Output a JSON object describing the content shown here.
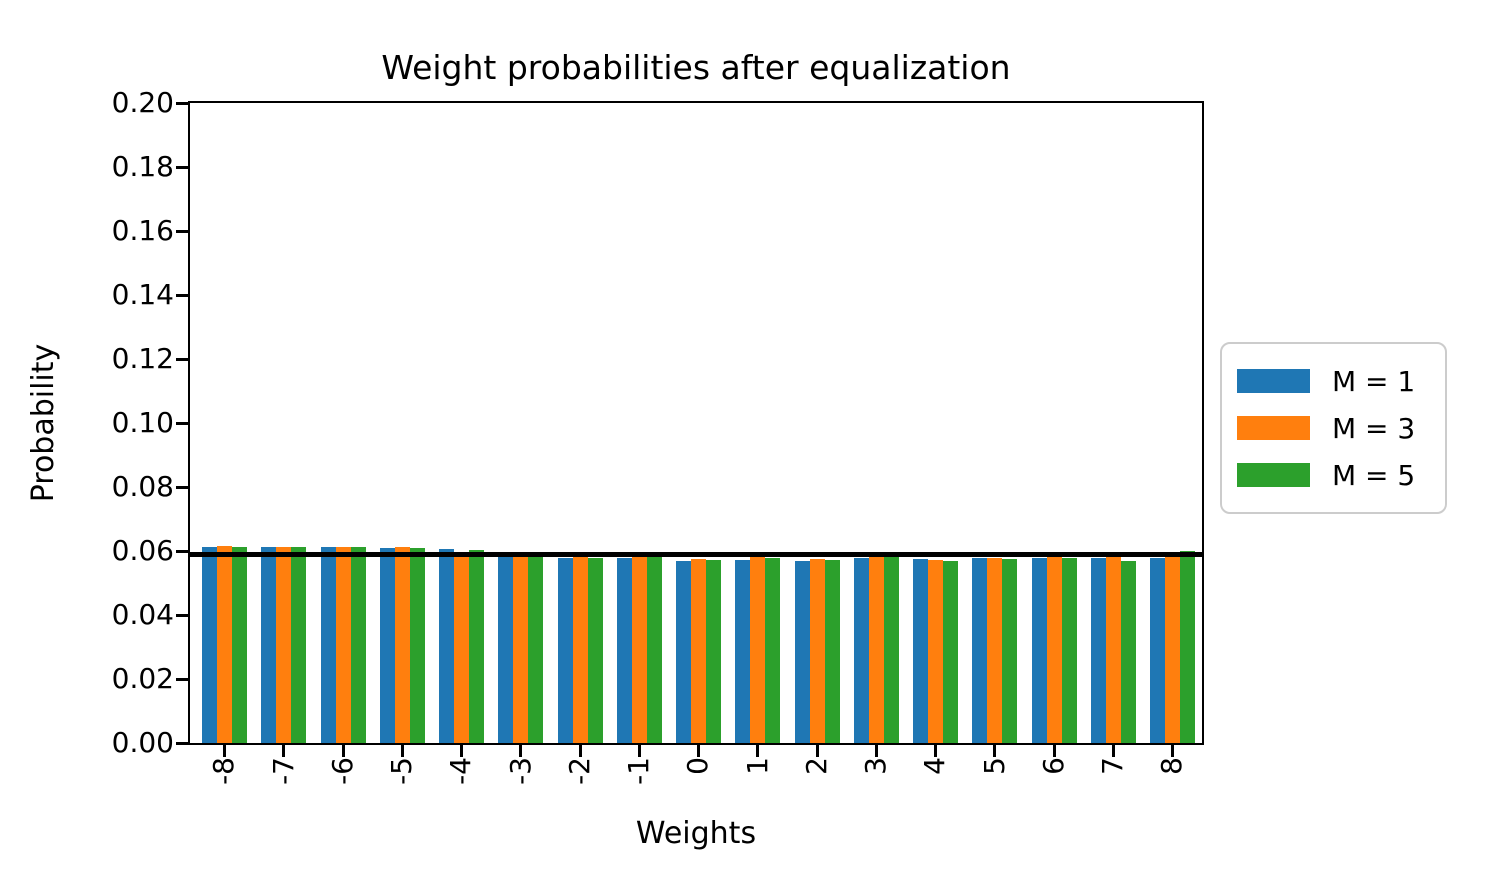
{
  "figure": {
    "kind": "matplotlib-bar-chart"
  },
  "chart_data": {
    "type": "bar",
    "title": "Weight probabilities after equalization",
    "xlabel": "Weights",
    "ylabel": "Probability",
    "categories": [
      "-8",
      "-7",
      "-6",
      "-5",
      "-4",
      "-3",
      "-2",
      "-1",
      "0",
      "1",
      "2",
      "3",
      "4",
      "5",
      "6",
      "7",
      "8"
    ],
    "series": [
      {
        "name": "M = 1",
        "color": "#1f77b4",
        "values": [
          0.0613,
          0.0613,
          0.0613,
          0.0609,
          0.0606,
          0.058,
          0.0578,
          0.0578,
          0.057,
          0.0572,
          0.057,
          0.0578,
          0.0575,
          0.0578,
          0.0578,
          0.0578,
          0.0578
        ]
      },
      {
        "name": "M = 3",
        "color": "#ff7f0e",
        "values": [
          0.0615,
          0.0614,
          0.0614,
          0.0612,
          0.0598,
          0.0582,
          0.058,
          0.0582,
          0.0575,
          0.0581,
          0.0575,
          0.0582,
          0.0572,
          0.0578,
          0.058,
          0.058,
          0.058
        ]
      },
      {
        "name": "M = 5",
        "color": "#2ca02c",
        "values": [
          0.0614,
          0.0614,
          0.0613,
          0.061,
          0.0603,
          0.0581,
          0.0579,
          0.058,
          0.0572,
          0.0578,
          0.0572,
          0.058,
          0.057,
          0.0575,
          0.0577,
          0.0568,
          0.06
        ]
      }
    ],
    "reference_line": {
      "value": 0.0588,
      "color": "#000000"
    },
    "ylim": [
      0.0,
      0.2
    ],
    "yticks": [
      "0.00",
      "0.02",
      "0.04",
      "0.06",
      "0.08",
      "0.10",
      "0.12",
      "0.14",
      "0.16",
      "0.18",
      "0.20"
    ],
    "ytick_step": 0.02,
    "xtick_rotation": 90,
    "grid": false,
    "legend": {
      "position": "center-right",
      "entries": [
        "M = 1",
        "M = 3",
        "M = 5"
      ]
    },
    "colors": {
      "spine": "#000000",
      "background": "#ffffff",
      "legend_edge": "#cccccc"
    }
  }
}
